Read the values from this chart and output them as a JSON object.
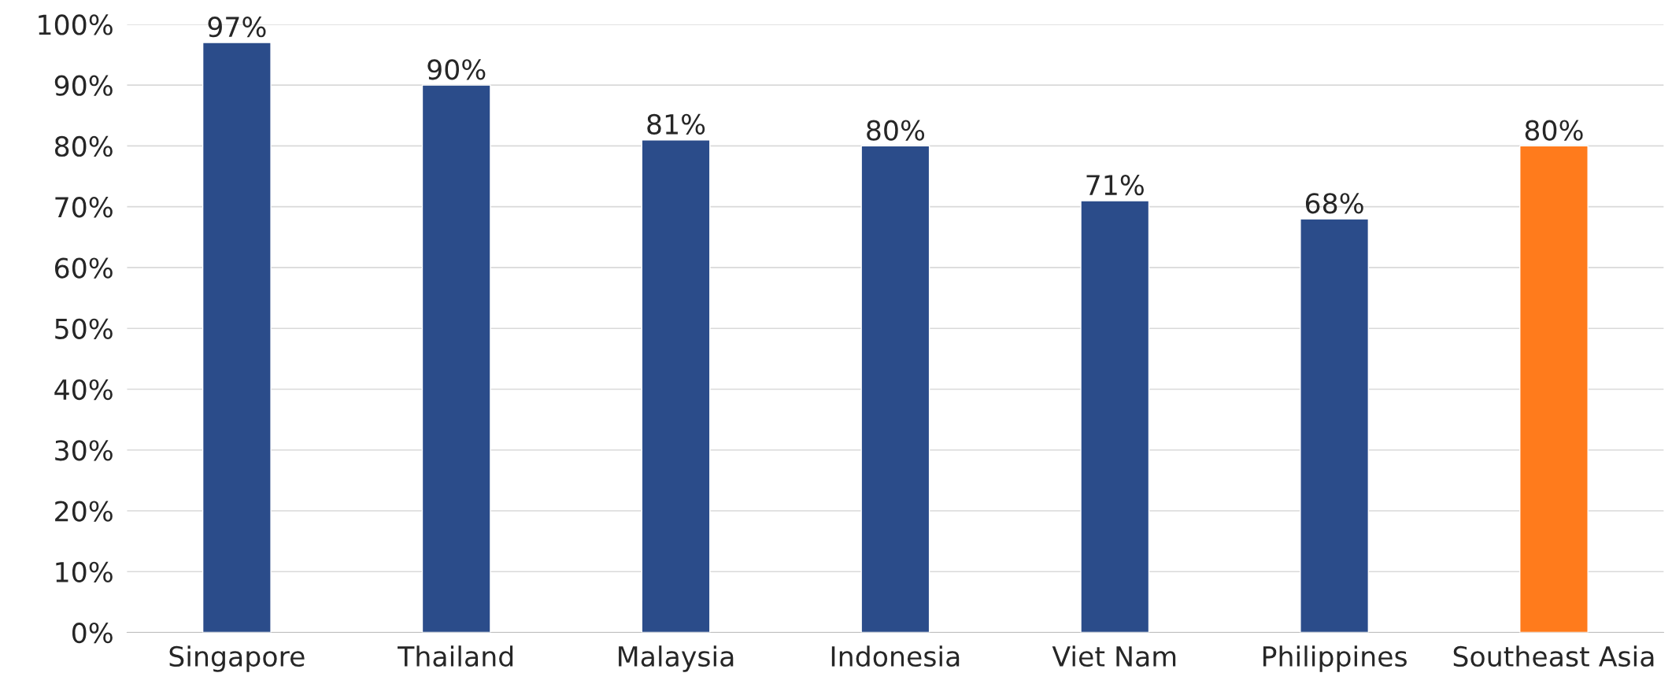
{
  "chart_data": {
    "type": "bar",
    "categories": [
      "Singapore",
      "Thailand",
      "Malaysia",
      "Indonesia",
      "Viet Nam",
      "Philippines",
      "Southeast Asia"
    ],
    "values": [
      97,
      90,
      81,
      80,
      71,
      68,
      80
    ],
    "colors": [
      "#2b4c8a",
      "#2b4c8a",
      "#2b4c8a",
      "#2b4c8a",
      "#2b4c8a",
      "#2b4c8a",
      "#ff7b1c"
    ],
    "value_labels": [
      "97%",
      "90%",
      "81%",
      "80%",
      "71%",
      "68%",
      "80%"
    ],
    "ylim": [
      0,
      100
    ],
    "yticks": [
      {
        "value": 0,
        "label": "0%"
      },
      {
        "value": 10,
        "label": "10%"
      },
      {
        "value": 20,
        "label": "20%"
      },
      {
        "value": 30,
        "label": "30%"
      },
      {
        "value": 40,
        "label": "40%"
      },
      {
        "value": 50,
        "label": "50%"
      },
      {
        "value": 60,
        "label": "60%"
      },
      {
        "value": 70,
        "label": "70%"
      },
      {
        "value": 80,
        "label": "80%"
      },
      {
        "value": 90,
        "label": "90%"
      },
      {
        "value": 100,
        "label": "100%"
      }
    ],
    "grid": "y"
  }
}
